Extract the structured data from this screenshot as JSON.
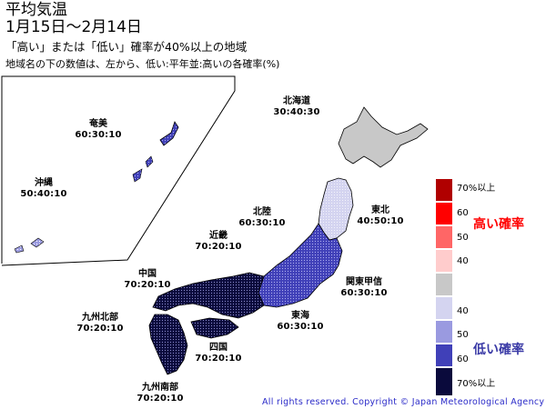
{
  "title": {
    "line1": "平均気温",
    "line2": "1月15日～2月14日"
  },
  "subtitle": "「高い」または「低い」確率が40%以上の地域",
  "note": "地域名の下の数値は、左から、低い:平年並:高いの各確率(%)",
  "regions": [
    {
      "name": "北海道",
      "probs": "30:40:30",
      "category": "normal"
    },
    {
      "name": "東北",
      "probs": "40:50:10",
      "category": "low40"
    },
    {
      "name": "北陸",
      "probs": "60:30:10",
      "category": "low60"
    },
    {
      "name": "関東甲信",
      "probs": "60:30:10",
      "category": "low60"
    },
    {
      "name": "東海",
      "probs": "60:30:10",
      "category": "low60"
    },
    {
      "name": "近畿",
      "probs": "70:20:10",
      "category": "low70"
    },
    {
      "name": "中国",
      "probs": "70:20:10",
      "category": "low70"
    },
    {
      "name": "四国",
      "probs": "70:20:10",
      "category": "low70"
    },
    {
      "name": "九州北部",
      "probs": "70:20:10",
      "category": "low70"
    },
    {
      "name": "九州南部",
      "probs": "70:20:10",
      "category": "low70"
    },
    {
      "name": "奄美",
      "probs": "60:30:10",
      "category": "low60"
    },
    {
      "name": "沖縄",
      "probs": "50:40:10",
      "category": "low50"
    }
  ],
  "legend": {
    "labels": [
      "70%以上",
      "60",
      "50",
      "40",
      "40",
      "50",
      "60",
      "70%以上"
    ],
    "high_label": "高い確率",
    "low_label": "低い確率",
    "colors": {
      "high70": "#b00000",
      "high60": "#ff0000",
      "high50": "#ff6666",
      "high40": "#ffcccc",
      "normal": "#c8c8c8",
      "low40": "#d4d4f0",
      "low50": "#9a9ae0",
      "low60": "#4040b8",
      "low70": "#0a0a3c"
    }
  },
  "copyright": "All rights reserved. Copyright © Japan Meteorological Agency"
}
